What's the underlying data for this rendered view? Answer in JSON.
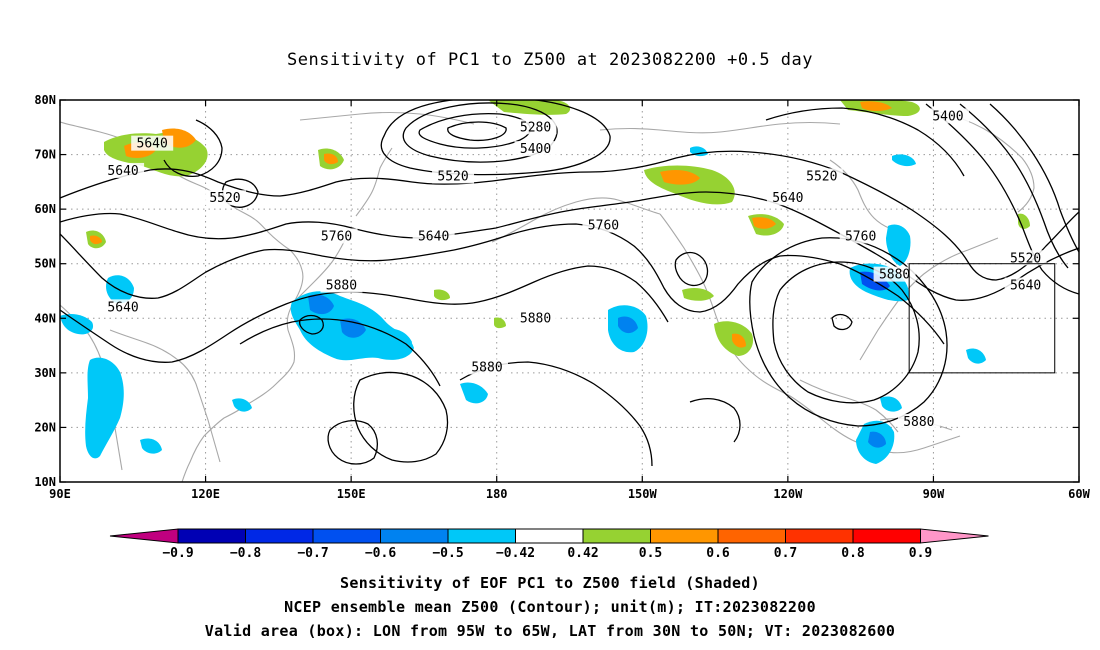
{
  "title": "Sensitivity of PC1 to Z500 at 2023082200 +0.5 day",
  "map": {
    "lon_range": [
      90,
      300
    ],
    "lat_range": [
      10,
      80
    ],
    "x_ticks": [
      "90E",
      "120E",
      "150E",
      "180",
      "150W",
      "120W",
      "90W",
      "60W"
    ],
    "x_tick_lons": [
      90,
      120,
      150,
      180,
      210,
      240,
      270,
      300
    ],
    "y_ticks": [
      "10N",
      "20N",
      "30N",
      "40N",
      "50N",
      "60N",
      "70N",
      "80N"
    ],
    "y_tick_lats": [
      10,
      20,
      30,
      40,
      50,
      60,
      70,
      80
    ],
    "valid_box": {
      "lon_west": 265,
      "lon_east": 295,
      "lat_south": 30,
      "lat_north": 50
    },
    "contour_labels": [
      {
        "text": "5640",
        "lon": 109,
        "lat": 72
      },
      {
        "text": "5640",
        "lon": 103,
        "lat": 67
      },
      {
        "text": "5520",
        "lon": 124,
        "lat": 62
      },
      {
        "text": "5280",
        "lon": 188,
        "lat": 75
      },
      {
        "text": "5400",
        "lon": 188,
        "lat": 71
      },
      {
        "text": "5520",
        "lon": 171,
        "lat": 66
      },
      {
        "text": "5640",
        "lon": 103,
        "lat": 42
      },
      {
        "text": "5760",
        "lon": 147,
        "lat": 55
      },
      {
        "text": "5880",
        "lon": 148,
        "lat": 46
      },
      {
        "text": "5640",
        "lon": 167,
        "lat": 55
      },
      {
        "text": "5760",
        "lon": 202,
        "lat": 57
      },
      {
        "text": "5880",
        "lon": 188,
        "lat": 40
      },
      {
        "text": "5880",
        "lon": 178,
        "lat": 31
      },
      {
        "text": "5520",
        "lon": 247,
        "lat": 66
      },
      {
        "text": "5640",
        "lon": 240,
        "lat": 62
      },
      {
        "text": "5400",
        "lon": 273,
        "lat": 77
      },
      {
        "text": "5760",
        "lon": 255,
        "lat": 55
      },
      {
        "text": "5880",
        "lon": 262,
        "lat": 48
      },
      {
        "text": "5520",
        "lon": 289,
        "lat": 51
      },
      {
        "text": "5640",
        "lon": 289,
        "lat": 46
      },
      {
        "text": "5880",
        "lon": 267,
        "lat": 21
      }
    ]
  },
  "colorbar": {
    "labels": [
      "-0.9",
      "-0.8",
      "-0.7",
      "-0.6",
      "-0.5",
      "-0.42",
      "0.42",
      "0.5",
      "0.6",
      "0.7",
      "0.8",
      "0.9"
    ],
    "colors": [
      "#c0007f",
      "#0000b4",
      "#0028e6",
      "#0050f0",
      "#0082f0",
      "#00c8f8",
      "#ffffff",
      "#96d232",
      "#ff9600",
      "#ff6400",
      "#ff3200",
      "#ff0000",
      "#ff96c8"
    ]
  },
  "captions": [
    "Sensitivity of EOF PC1 to Z500 field (Shaded)",
    "NCEP ensemble mean Z500 (Contour); unit(m); IT:2023082200",
    "Valid area (box): LON from 95W to 65W, LAT from 30N to 50N; VT: 2023082600"
  ]
}
